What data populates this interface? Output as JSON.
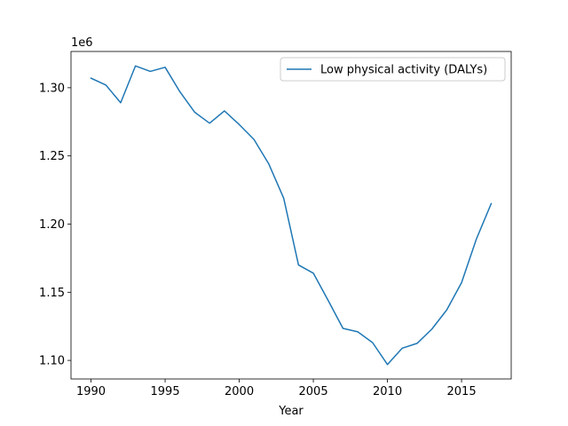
{
  "chart_data": {
    "type": "line",
    "title": "",
    "xlabel": "Year",
    "ylabel": "",
    "y_offset_label": "1e6",
    "x": [
      1990,
      1991,
      1992,
      1993,
      1994,
      1995,
      1996,
      1997,
      1998,
      1999,
      2000,
      2001,
      2002,
      2003,
      2004,
      2005,
      2006,
      2007,
      2008,
      2009,
      2010,
      2011,
      2012,
      2013,
      2014,
      2015,
      2016,
      2017
    ],
    "series": [
      {
        "name": "Low physical activity (DALYs)",
        "color": "#1f77b4",
        "values": [
          1307000,
          1302000,
          1289000,
          1316000,
          1312000,
          1315000,
          1297000,
          1282000,
          1274000,
          1283000,
          1273000,
          1262000,
          1244000,
          1219000,
          1170000,
          1164000,
          1144000,
          1123500,
          1121000,
          1113000,
          1097000,
          1109000,
          1112500,
          1123000,
          1137000,
          1157000,
          1189000,
          1215000
        ]
      }
    ],
    "xlim": [
      1988.65,
      2018.35
    ],
    "ylim": [
      1.0864,
      1.3266
    ],
    "y_scale_note": "values shown in units of 1e6",
    "x_ticks": [
      1990,
      1995,
      2000,
      2005,
      2010,
      2015
    ],
    "x_tick_labels": [
      "1990",
      "1995",
      "2000",
      "2005",
      "2010",
      "2015"
    ],
    "y_ticks": [
      1.1,
      1.15,
      1.2,
      1.25,
      1.3
    ],
    "y_tick_labels": [
      "1.10",
      "1.15",
      "1.20",
      "1.25",
      "1.30"
    ],
    "grid": false,
    "legend_position": "top-right"
  }
}
